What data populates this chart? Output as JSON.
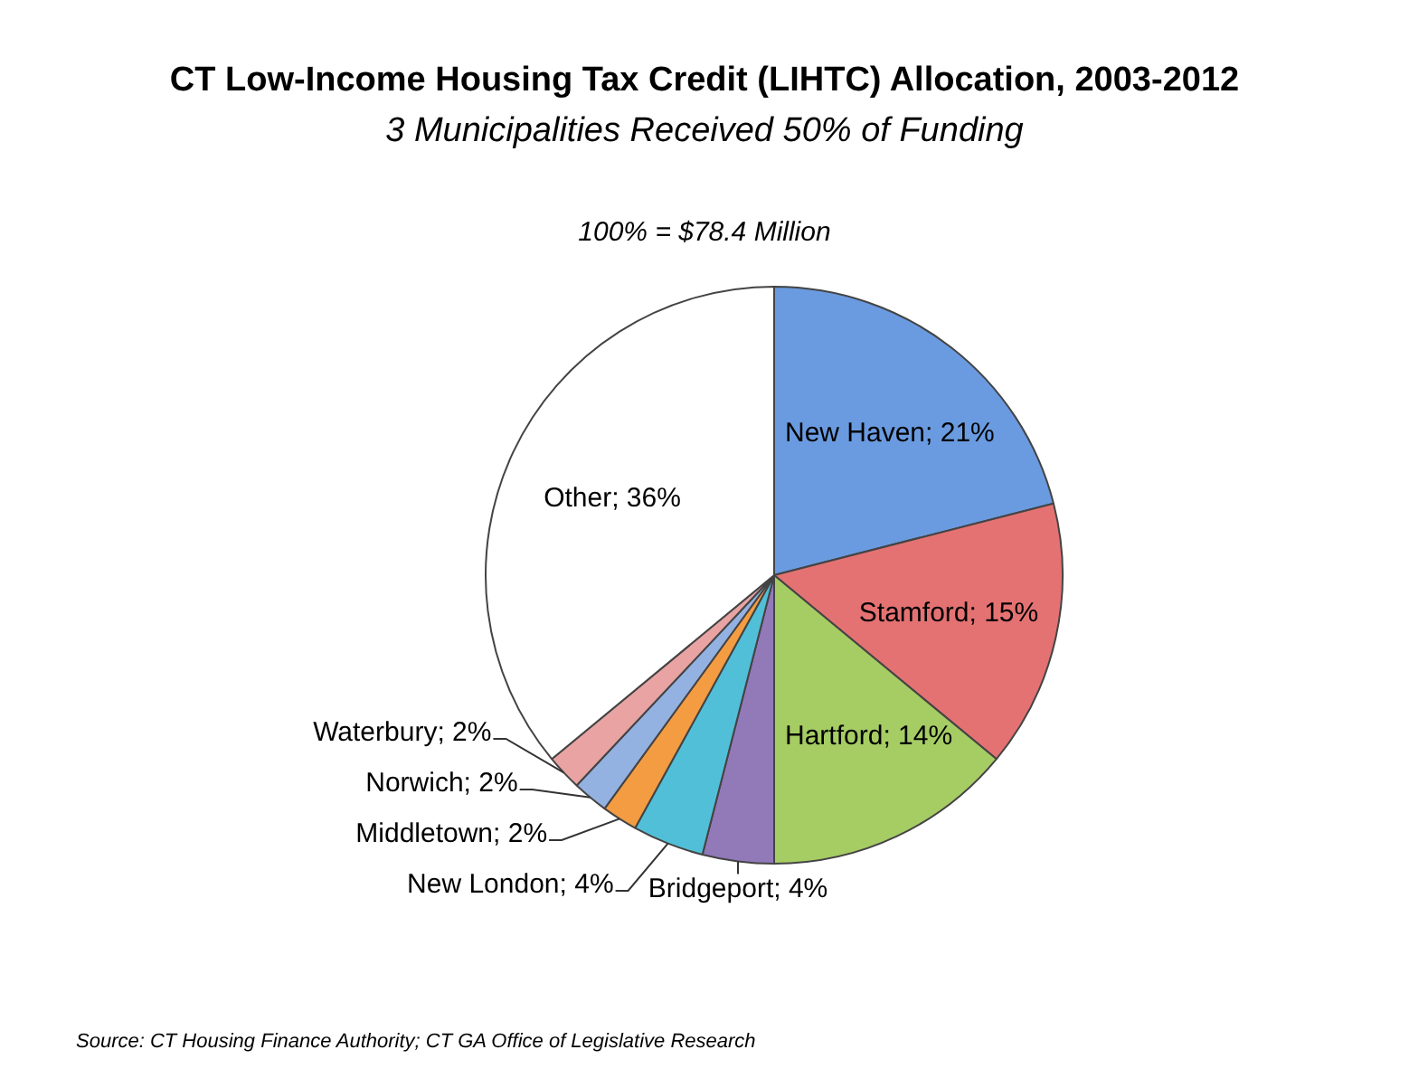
{
  "chart_data": {
    "type": "pie",
    "title": "CT Low-Income Housing Tax Credit (LIHTC) Allocation, 2003-2012",
    "subtitle": "3 Municipalities Received 50% of Funding",
    "annotations": [
      "100% = $78.4 Million",
      "Source: CT Housing Finance Authority; CT GA Office of Legislative Research"
    ],
    "categories": [
      "New Haven",
      "Stamford",
      "Hartford",
      "Bridgeport",
      "New London",
      "Middletown",
      "Norwich",
      "Waterbury",
      "Other"
    ],
    "values": [
      21,
      15,
      14,
      4,
      4,
      2,
      2,
      2,
      36
    ],
    "colors": [
      "#6a9be0",
      "#e47272",
      "#a6cc64",
      "#9279b8",
      "#52bfd8",
      "#f49c42",
      "#93b2e2",
      "#e9a3a3",
      "#ffffff"
    ],
    "value_labels": [
      "21%",
      "15%",
      "14%",
      "4%",
      "4%",
      "2%",
      "2%",
      "2%",
      "36%"
    ],
    "legend": false
  }
}
